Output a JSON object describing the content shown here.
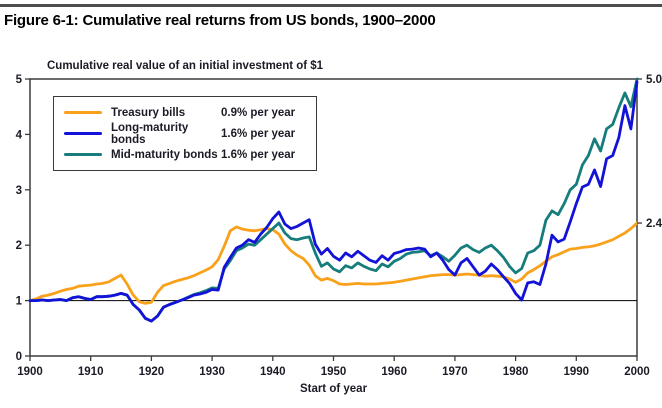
{
  "chart_data": {
    "type": "line",
    "title": "Figure 6-1: Cumulative real returns from US bonds, 1900–2000",
    "subtitle": "Cumulative real value of an initial investment of $1",
    "xlabel": "Start of year",
    "x_start": 1900,
    "x_end": 2000,
    "x_ticks": [
      1900,
      1910,
      1920,
      1930,
      1940,
      1950,
      1960,
      1970,
      1980,
      1990,
      2000
    ],
    "y_ticks": [
      0,
      1,
      2,
      3,
      4,
      5
    ],
    "ylim": [
      0,
      5
    ],
    "reference_line_y": 1,
    "grid": false,
    "legend_position": "top-left",
    "end_labels": [
      {
        "value": 5.0,
        "label": "5.0"
      },
      {
        "value": 2.4,
        "label": "2.4"
      }
    ],
    "series": [
      {
        "name": "Treasury bills",
        "rate_label": "0.9% per year",
        "color": "#F9A11B",
        "values": [
          1.0,
          1.03,
          1.08,
          1.1,
          1.13,
          1.17,
          1.2,
          1.22,
          1.26,
          1.27,
          1.28,
          1.3,
          1.31,
          1.34,
          1.4,
          1.46,
          1.3,
          1.1,
          0.98,
          0.95,
          0.97,
          1.15,
          1.27,
          1.31,
          1.35,
          1.38,
          1.41,
          1.45,
          1.5,
          1.55,
          1.61,
          1.74,
          1.98,
          2.26,
          2.33,
          2.29,
          2.27,
          2.26,
          2.28,
          2.3,
          2.28,
          2.2,
          2.02,
          1.9,
          1.82,
          1.76,
          1.64,
          1.45,
          1.37,
          1.4,
          1.36,
          1.3,
          1.29,
          1.3,
          1.31,
          1.3,
          1.3,
          1.3,
          1.31,
          1.32,
          1.33,
          1.35,
          1.37,
          1.39,
          1.41,
          1.43,
          1.45,
          1.46,
          1.47,
          1.47,
          1.46,
          1.47,
          1.48,
          1.47,
          1.46,
          1.44,
          1.45,
          1.44,
          1.43,
          1.39,
          1.33,
          1.39,
          1.5,
          1.56,
          1.63,
          1.71,
          1.79,
          1.83,
          1.88,
          1.93,
          1.94,
          1.96,
          1.97,
          1.99,
          2.02,
          2.06,
          2.1,
          2.16,
          2.22,
          2.3,
          2.4
        ]
      },
      {
        "name": "Long-maturity bonds",
        "rate_label": "1.6% per year",
        "color": "#1212D8",
        "values": [
          1.0,
          1.0,
          1.01,
          1.0,
          1.01,
          1.02,
          1.0,
          1.05,
          1.07,
          1.04,
          1.02,
          1.07,
          1.07,
          1.08,
          1.1,
          1.13,
          1.1,
          0.93,
          0.83,
          0.68,
          0.63,
          0.72,
          0.88,
          0.93,
          0.97,
          1.01,
          1.05,
          1.1,
          1.12,
          1.15,
          1.2,
          1.19,
          1.6,
          1.78,
          1.95,
          2.0,
          2.1,
          2.05,
          2.2,
          2.32,
          2.48,
          2.6,
          2.38,
          2.3,
          2.34,
          2.4,
          2.46,
          2.02,
          1.84,
          1.94,
          1.8,
          1.73,
          1.86,
          1.79,
          1.89,
          1.81,
          1.73,
          1.69,
          1.81,
          1.73,
          1.85,
          1.88,
          1.92,
          1.93,
          1.95,
          1.93,
          1.79,
          1.86,
          1.73,
          1.56,
          1.46,
          1.68,
          1.76,
          1.61,
          1.46,
          1.53,
          1.66,
          1.56,
          1.43,
          1.31,
          1.13,
          1.01,
          1.32,
          1.34,
          1.29,
          1.66,
          2.18,
          2.06,
          2.11,
          2.42,
          2.75,
          3.05,
          3.1,
          3.36,
          3.06,
          3.56,
          3.62,
          3.94,
          4.52,
          4.1,
          4.95
        ]
      },
      {
        "name": "Mid-maturity bonds",
        "rate_label": "1.6% per year",
        "color": "#177C7C",
        "values": [
          1.0,
          1.0,
          1.01,
          1.0,
          1.01,
          1.02,
          1.0,
          1.05,
          1.07,
          1.04,
          1.02,
          1.07,
          1.07,
          1.08,
          1.1,
          1.13,
          1.1,
          0.93,
          0.83,
          0.68,
          0.63,
          0.72,
          0.88,
          0.93,
          0.97,
          1.01,
          1.06,
          1.11,
          1.14,
          1.18,
          1.23,
          1.22,
          1.57,
          1.72,
          1.9,
          1.95,
          2.02,
          2.0,
          2.1,
          2.2,
          2.3,
          2.4,
          2.22,
          2.12,
          2.1,
          2.13,
          2.15,
          1.86,
          1.62,
          1.68,
          1.57,
          1.52,
          1.63,
          1.59,
          1.68,
          1.62,
          1.57,
          1.54,
          1.66,
          1.61,
          1.71,
          1.76,
          1.84,
          1.87,
          1.88,
          1.9,
          1.81,
          1.86,
          1.79,
          1.71,
          1.82,
          1.95,
          2.0,
          1.92,
          1.87,
          1.95,
          2.0,
          1.9,
          1.78,
          1.62,
          1.5,
          1.58,
          1.86,
          1.9,
          2.0,
          2.45,
          2.62,
          2.55,
          2.75,
          3.0,
          3.1,
          3.45,
          3.62,
          3.92,
          3.7,
          4.1,
          4.18,
          4.48,
          4.75,
          4.5,
          5.0
        ]
      }
    ]
  }
}
